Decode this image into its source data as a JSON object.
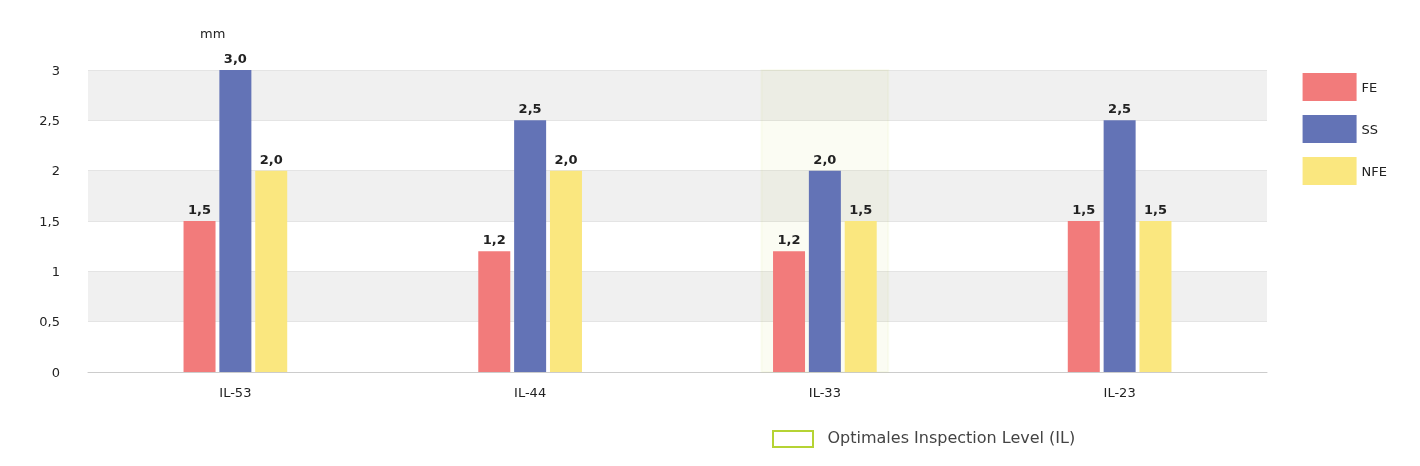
{
  "chart_data": {
    "type": "bar",
    "ylabel": "mm",
    "categories": [
      "IL-53",
      "IL-44",
      "IL-33",
      "IL-23"
    ],
    "series": [
      {
        "name": "FE",
        "color": "#f27b7b",
        "values": [
          1.5,
          1.2,
          1.2,
          1.5
        ],
        "value_labels": [
          "1,5",
          "1,2",
          "1,2",
          "1,5"
        ]
      },
      {
        "name": "SS",
        "color": "#6373b6",
        "values": [
          3.0,
          2.5,
          2.0,
          2.5
        ],
        "value_labels": [
          "3,0",
          "2,5",
          "2,0",
          "2,5"
        ]
      },
      {
        "name": "NFE",
        "color": "#fae77f",
        "values": [
          2.0,
          2.0,
          1.5,
          1.5
        ],
        "value_labels": [
          "2,0",
          "2,0",
          "1,5",
          "1,5"
        ]
      }
    ],
    "ylim": [
      0,
      3
    ],
    "yticks": [
      0,
      {
        "value": 0.5,
        "label": "0,5"
      },
      1,
      {
        "value": 1.5,
        "label": "1,5"
      },
      2,
      {
        "value": 2.5,
        "label": "2,5"
      },
      3
    ],
    "grid": "y",
    "legend": "right",
    "bands": [
      {
        "axis": "x",
        "from": "IL-33",
        "to": "IL-33",
        "label": "Optimales Inspection Level (IL)",
        "color": "#b5d334"
      }
    ]
  }
}
